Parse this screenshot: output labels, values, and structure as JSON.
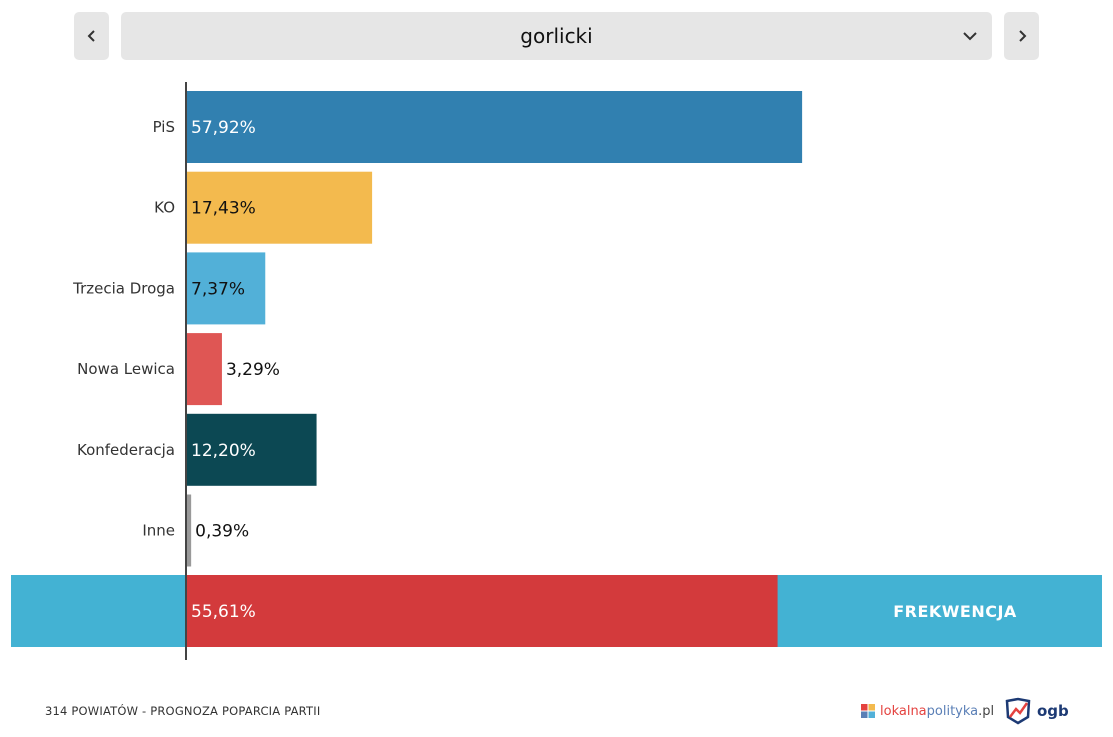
{
  "selector": {
    "current": "gorlicki",
    "prev_icon": "chevron-left-icon",
    "next_icon": "chevron-right-icon",
    "dropdown_icon": "chevron-down-icon"
  },
  "chart_data": {
    "type": "bar",
    "orientation": "horizontal",
    "title": "",
    "xlabel": "",
    "ylabel": "",
    "xlim": [
      0,
      100
    ],
    "grid": false,
    "categories": [
      "PiS",
      "KO",
      "Trzecia Droga",
      "Nowa Lewica",
      "Konfederacja",
      "Inne"
    ],
    "values": [
      57.92,
      17.43,
      7.37,
      3.29,
      12.2,
      0.39
    ],
    "value_labels": [
      "57,92%",
      "17,43%",
      "7,37%",
      "3,29%",
      "12,20%",
      "0,39%"
    ],
    "colors": [
      "#3180b0",
      "#f3ba4e",
      "#52b0d8",
      "#df5654",
      "#0c4853",
      "#999999"
    ],
    "turnout": {
      "label": "FREKWENCJA",
      "value": 55.61,
      "value_label": "55,61%",
      "bar_color": "#d33a3c",
      "band_color": "#43b2d3"
    }
  },
  "footer": {
    "caption": "314 POWIATÓW - PROGNOZA POPARCIA PARTII",
    "logo_lokalna": {
      "part1": "lokalna",
      "part2": "polityka",
      "part3": ".pl"
    },
    "logo_ogb": "ogb"
  }
}
